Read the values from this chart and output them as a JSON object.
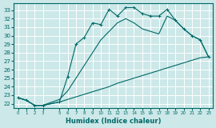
{
  "xlabel": "Humidex (Indice chaleur)",
  "bg_color": "#cce8e8",
  "grid_color": "#ffffff",
  "line_color": "#006868",
  "xlim": [
    -0.5,
    23.5
  ],
  "ylim": [
    21.5,
    33.8
  ],
  "yticks": [
    22,
    23,
    24,
    25,
    26,
    27,
    28,
    29,
    30,
    31,
    32,
    33
  ],
  "xticks": [
    0,
    1,
    2,
    3,
    5,
    6,
    7,
    8,
    9,
    10,
    11,
    12,
    13,
    14,
    15,
    16,
    17,
    18,
    19,
    20,
    21,
    22,
    23
  ],
  "curve1_x": [
    0,
    1,
    2,
    3,
    5,
    6,
    7,
    8,
    9,
    10,
    11,
    12,
    13,
    14,
    15,
    16,
    17,
    18,
    19,
    20,
    21,
    22,
    23
  ],
  "curve1_y": [
    22.7,
    22.4,
    21.8,
    21.8,
    22.2,
    25.2,
    29.0,
    29.8,
    31.5,
    31.3,
    33.1,
    32.3,
    33.3,
    33.3,
    32.6,
    32.3,
    32.3,
    33.1,
    31.8,
    30.8,
    30.0,
    29.5,
    27.5
  ],
  "curve2_x": [
    0,
    1,
    2,
    3,
    5,
    6,
    7,
    8,
    9,
    10,
    11,
    12,
    13,
    14,
    15,
    16,
    17,
    18,
    19,
    20,
    21,
    22,
    23
  ],
  "curve2_y": [
    22.7,
    22.4,
    21.8,
    21.8,
    22.5,
    23.5,
    25.0,
    26.5,
    28.0,
    29.5,
    30.5,
    31.5,
    32.0,
    31.5,
    30.8,
    30.5,
    30.2,
    32.3,
    31.8,
    30.8,
    30.0,
    29.5,
    27.5
  ],
  "curve3_x": [
    0,
    1,
    2,
    3,
    5,
    6,
    7,
    8,
    9,
    10,
    11,
    12,
    13,
    14,
    15,
    16,
    17,
    18,
    19,
    20,
    21,
    22,
    23
  ],
  "curve3_y": [
    22.7,
    22.4,
    21.8,
    21.8,
    22.2,
    22.5,
    22.8,
    23.1,
    23.4,
    23.7,
    24.0,
    24.4,
    24.7,
    25.0,
    25.3,
    25.6,
    25.9,
    26.2,
    26.5,
    26.8,
    27.1,
    27.4,
    27.5
  ]
}
